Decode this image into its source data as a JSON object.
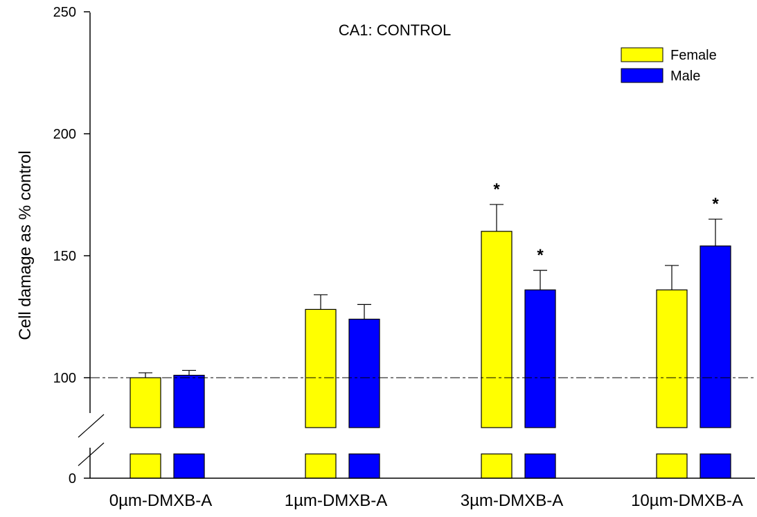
{
  "chart_data": {
    "type": "bar",
    "title": "CA1: CONTROL",
    "ylabel": "Cell damage as % control",
    "xlabel": "",
    "categories": [
      "0µm-DMXB-A",
      "1µm-DMXB-A",
      "3µm-DMXB-A",
      "10µm-DMXB-A"
    ],
    "yticks": [
      "0",
      "100",
      "150",
      "200",
      "250"
    ],
    "ylim": [
      0,
      250
    ],
    "axis_break": true,
    "reference_line": 100,
    "legend_position": "top-right",
    "series": [
      {
        "name": "Female",
        "color": "#ffff00",
        "values": [
          100,
          128,
          160,
          136
        ],
        "errors": [
          2,
          6,
          11,
          10
        ],
        "significant": [
          false,
          false,
          true,
          false
        ]
      },
      {
        "name": "Male",
        "color": "#0000ff",
        "values": [
          101,
          124,
          136,
          154
        ],
        "errors": [
          2,
          6,
          8,
          11
        ],
        "significant": [
          false,
          false,
          true,
          true
        ]
      }
    ],
    "significance_marker": "*"
  }
}
